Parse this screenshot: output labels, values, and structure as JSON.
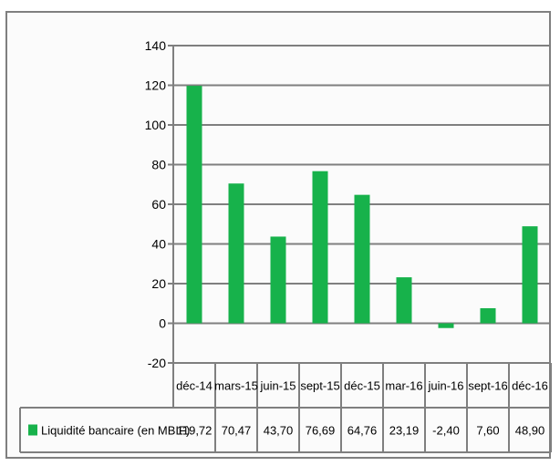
{
  "chart_data": {
    "type": "bar",
    "title": "",
    "xlabel": "",
    "ylabel": "",
    "categories": [
      "déc-14",
      "mars-15",
      "juin-15",
      "sept-15",
      "déc-15",
      "mar-16",
      "juin-16",
      "sept-16",
      "déc-16"
    ],
    "series": [
      {
        "name": "Liquidité bancaire (en MBIF)",
        "values": [
          119.72,
          70.47,
          43.7,
          76.69,
          64.76,
          23.19,
          -2.4,
          7.6,
          48.9
        ],
        "value_labels": [
          "119,72",
          "70,47",
          "43,70",
          "76,69",
          "64,76",
          "23,19",
          "-2,40",
          "7,60",
          "48,90"
        ],
        "color": "#17b24b"
      }
    ],
    "ylim": [
      -20,
      140
    ],
    "yticks": [
      -20,
      0,
      20,
      40,
      60,
      80,
      100,
      120,
      140
    ],
    "grid": true,
    "grid_color": "#7f7f7f",
    "legend": "data-table",
    "data_table": true
  }
}
